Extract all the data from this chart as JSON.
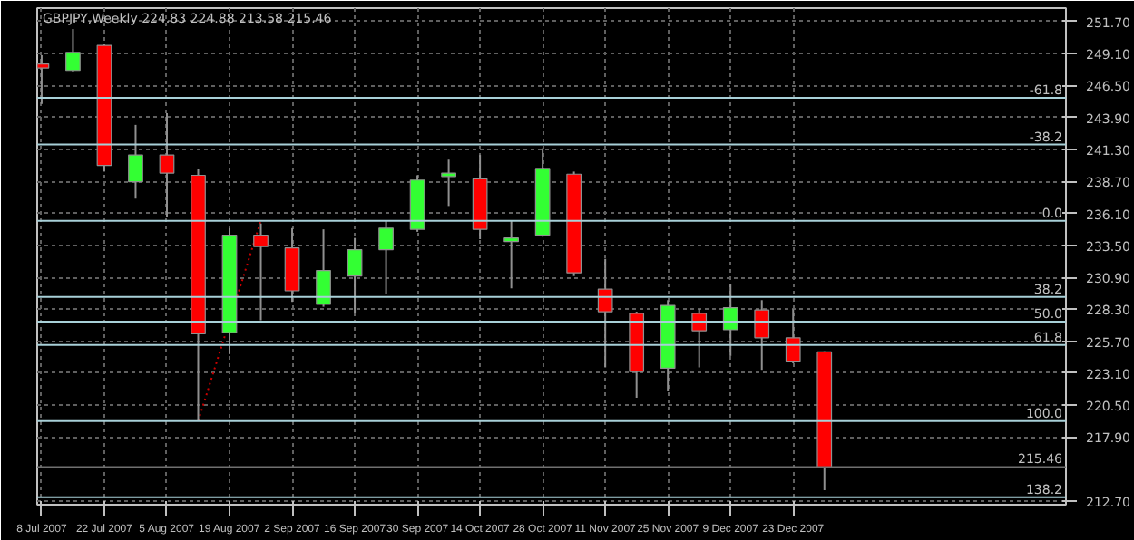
{
  "chart_data": {
    "type": "candlestick",
    "title": "GBPJPY,Weekly  224.83 224.88 213.58 215.46",
    "x": [
      "2007-07-08",
      "2007-07-15",
      "2007-07-22",
      "2007-07-29",
      "2007-08-05",
      "2007-08-12",
      "2007-08-19",
      "2007-08-26",
      "2007-09-02",
      "2007-09-09",
      "2007-09-16",
      "2007-09-23",
      "2007-09-30",
      "2007-10-07",
      "2007-10-14",
      "2007-10-21",
      "2007-10-28",
      "2007-11-04",
      "2007-11-11",
      "2007-11-18",
      "2007-11-25",
      "2007-12-02",
      "2007-12-09",
      "2007-12-16",
      "2007-12-23",
      "2007-12-30"
    ],
    "ohlc": [
      [
        248.26,
        248.97,
        245.0,
        247.93
      ],
      [
        247.73,
        251.1,
        247.6,
        249.2
      ],
      [
        249.77,
        249.85,
        239.5,
        240.0
      ],
      [
        238.67,
        243.3,
        237.3,
        240.85
      ],
      [
        240.85,
        244.25,
        235.8,
        239.38
      ],
      [
        239.2,
        239.76,
        219.2,
        226.3
      ],
      [
        226.4,
        234.9,
        224.65,
        234.33
      ],
      [
        234.33,
        235.27,
        227.4,
        233.4
      ],
      [
        233.29,
        234.9,
        228.9,
        229.8
      ],
      [
        228.7,
        234.8,
        228.5,
        231.45
      ],
      [
        231.0,
        234.1,
        227.96,
        233.15
      ],
      [
        233.15,
        235.5,
        229.5,
        234.9
      ],
      [
        234.8,
        239.2,
        234.6,
        238.81
      ],
      [
        239.1,
        240.47,
        236.7,
        239.38
      ],
      [
        238.91,
        240.85,
        234.0,
        234.8
      ],
      [
        233.8,
        235.5,
        230.0,
        234.1
      ],
      [
        234.33,
        241.4,
        234.2,
        239.76
      ],
      [
        239.29,
        239.5,
        231.0,
        231.26
      ],
      [
        229.94,
        232.4,
        223.57,
        228.1
      ],
      [
        227.96,
        228.1,
        221.1,
        223.23
      ],
      [
        223.5,
        229.04,
        221.67,
        228.61
      ],
      [
        227.96,
        228.3,
        223.57,
        226.55
      ],
      [
        226.63,
        230.31,
        224.5,
        228.43
      ],
      [
        228.24,
        229.04,
        223.37,
        225.98
      ],
      [
        225.98,
        228.29,
        223.9,
        224.08
      ],
      [
        224.83,
        224.88,
        213.58,
        215.46
      ]
    ],
    "colors": [
      "#ff0000",
      "#33ff33",
      "#ff0000",
      "#33ff33",
      "#ff0000",
      "#ff0000",
      "#33ff33",
      "#ff0000",
      "#ff0000",
      "#33ff33",
      "#33ff33",
      "#33ff33",
      "#33ff33",
      "#33ff33",
      "#ff0000",
      "#33ff33",
      "#33ff33",
      "#ff0000",
      "#ff0000",
      "#ff0000",
      "#33ff33",
      "#ff0000",
      "#33ff33",
      "#ff0000",
      "#ff0000",
      "#ff0000"
    ],
    "series": [
      {
        "type": "line",
        "x": [
          "2007-08-12",
          "2007-08-26"
        ],
        "values": [
          219.2,
          235.5
        ],
        "color": "#cc0000",
        "line_style": "dotted"
      }
    ],
    "xlim": [
      "2007-07-07",
      "2008-02-22"
    ],
    "xticks": [
      {
        "value": "2007-07-08",
        "label": "8 Jul 2007"
      },
      {
        "value": "2007-07-22",
        "label": "22 Jul 2007"
      },
      {
        "value": "2007-08-05",
        "label": "5 Aug 2007"
      },
      {
        "value": "2007-08-19",
        "label": "19 Aug 2007"
      },
      {
        "value": "2007-09-02",
        "label": "2 Sep 2007"
      },
      {
        "value": "2007-09-16",
        "label": "16 Sep 2007"
      },
      {
        "value": "2007-09-30",
        "label": "30 Sep 2007"
      },
      {
        "value": "2007-10-14",
        "label": "14 Oct 2007"
      },
      {
        "value": "2007-10-28",
        "label": "28 Oct 2007"
      },
      {
        "value": "2007-11-11",
        "label": "11 Nov 2007"
      },
      {
        "value": "2007-11-25",
        "label": "25 Nov 2007"
      },
      {
        "value": "2007-12-09",
        "label": "9 Dec 2007"
      },
      {
        "value": "2007-12-23",
        "label": "23 Dec 2007"
      }
    ],
    "ylim": [
      212.4,
      252.8
    ],
    "yticks": [
      {
        "value": 212.7,
        "label": "212.70"
      },
      {
        "value": 217.9,
        "label": "217.90"
      },
      {
        "value": 220.5,
        "label": "220.50"
      },
      {
        "value": 223.1,
        "label": "223.10"
      },
      {
        "value": 225.7,
        "label": "225.70"
      },
      {
        "value": 228.3,
        "label": "228.30"
      },
      {
        "value": 230.9,
        "label": "230.90"
      },
      {
        "value": 233.5,
        "label": "233.50"
      },
      {
        "value": 236.1,
        "label": "236.10"
      },
      {
        "value": 238.7,
        "label": "238.70"
      },
      {
        "value": 241.3,
        "label": "241.30"
      },
      {
        "value": 243.9,
        "label": "243.90"
      },
      {
        "value": 246.5,
        "label": "246.50"
      },
      {
        "value": 249.1,
        "label": "249.10"
      },
      {
        "value": 251.7,
        "label": "251.70"
      }
    ],
    "ref_lines": [
      {
        "axis": "y",
        "value": 245.5,
        "color": "#a8d0d8"
      },
      {
        "axis": "y",
        "value": 241.7,
        "color": "#a8d0d8"
      },
      {
        "axis": "y",
        "value": 235.5,
        "color": "#a8d0d8"
      },
      {
        "axis": "y",
        "value": 229.3,
        "color": "#a8d0d8"
      },
      {
        "axis": "y",
        "value": 227.3,
        "color": "#a8d0d8"
      },
      {
        "axis": "y",
        "value": 225.4,
        "color": "#a8d0d8"
      },
      {
        "axis": "y",
        "value": 219.2,
        "color": "#a8d0d8"
      },
      {
        "axis": "y",
        "value": 213.0,
        "color": "#a8d0d8"
      },
      {
        "axis": "y",
        "value": 215.46,
        "label": "215.46",
        "color": "#707070"
      }
    ],
    "annotations": [
      {
        "text": "-61.8",
        "x": "2008-02-22",
        "y": 245.5
      },
      {
        "text": "-38.2",
        "x": "2008-02-22",
        "y": 241.7
      },
      {
        "text": "0.0",
        "x": "2008-02-22",
        "y": 235.5
      },
      {
        "text": "38.2",
        "x": "2008-02-22",
        "y": 229.3
      },
      {
        "text": "50.0",
        "x": "2008-02-22",
        "y": 227.3
      },
      {
        "text": "61.8",
        "x": "2008-02-22",
        "y": 225.4
      },
      {
        "text": "100.0",
        "x": "2008-02-22",
        "y": 219.2
      },
      {
        "text": "138.2",
        "x": "2008-02-22",
        "y": 213.0
      }
    ],
    "grid": true
  }
}
